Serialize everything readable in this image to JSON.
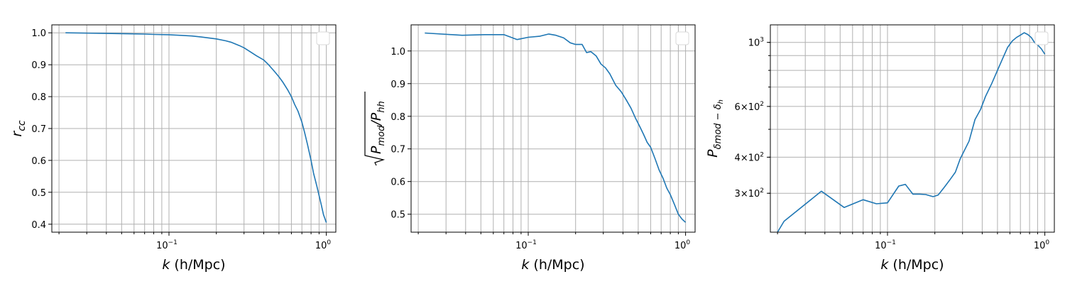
{
  "colors": {
    "line": "#1f77b4",
    "grid": "#b0b0b0"
  },
  "chart_data": [
    {
      "type": "line",
      "xscale": "log",
      "yscale": "linear",
      "xlim": [
        0.018,
        1.15
      ],
      "ylim": [
        0.375,
        1.025
      ],
      "grid": true,
      "legend": "top-right (empty)",
      "xlabel": {
        "main": "k",
        "rest": " (h/Mpc)"
      },
      "ylabel": {
        "base": "r",
        "sub": "cc"
      },
      "xtick_labels": [
        {
          "value": 0.1,
          "base": "10",
          "exp": "−1"
        },
        {
          "value": 1,
          "base": "10",
          "exp": "0"
        }
      ],
      "yticks": [
        {
          "value": 0.4,
          "label": "0.4"
        },
        {
          "value": 0.5,
          "label": "0.5"
        },
        {
          "value": 0.6,
          "label": "0.6"
        },
        {
          "value": 0.7,
          "label": "0.7"
        },
        {
          "value": 0.8,
          "label": "0.8"
        },
        {
          "value": 0.9,
          "label": "0.9"
        },
        {
          "value": 1.0,
          "label": "1.0"
        }
      ],
      "series": [
        {
          "x": [
            0.022,
            0.04,
            0.055,
            0.07,
            0.08,
            0.1,
            0.12,
            0.14,
            0.16,
            0.2,
            0.23,
            0.25,
            0.28,
            0.3,
            0.33,
            0.36,
            0.4,
            0.43,
            0.47,
            0.5,
            0.53,
            0.57,
            0.6,
            0.63,
            0.66,
            0.7,
            0.73,
            0.76,
            0.8,
            0.83,
            0.87,
            0.9,
            0.93,
            0.96,
            1.0
          ],
          "y": [
            1.0,
            0.998,
            0.997,
            0.996,
            0.995,
            0.994,
            0.992,
            0.99,
            0.987,
            0.981,
            0.975,
            0.97,
            0.96,
            0.953,
            0.94,
            0.928,
            0.915,
            0.9,
            0.878,
            0.862,
            0.845,
            0.82,
            0.8,
            0.775,
            0.755,
            0.72,
            0.685,
            0.65,
            0.6,
            0.56,
            0.52,
            0.49,
            0.46,
            0.43,
            0.405
          ]
        }
      ]
    },
    {
      "type": "line",
      "xscale": "log",
      "yscale": "linear",
      "xlim": [
        0.018,
        1.15
      ],
      "ylim": [
        0.445,
        1.08
      ],
      "grid": true,
      "legend": "top-right (empty)",
      "xlabel": {
        "main": "k",
        "rest": " (h/Mpc)"
      },
      "ylabel": {
        "p1": "P",
        "s1": "mod",
        "p2": "/P",
        "s2": "hh"
      },
      "xtick_labels": [
        {
          "value": 0.1,
          "base": "10",
          "exp": "−1"
        },
        {
          "value": 1,
          "base": "10",
          "exp": "0"
        }
      ],
      "yticks": [
        {
          "value": 0.5,
          "label": "0.5"
        },
        {
          "value": 0.6,
          "label": "0.6"
        },
        {
          "value": 0.7,
          "label": "0.7"
        },
        {
          "value": 0.8,
          "label": "0.8"
        },
        {
          "value": 0.9,
          "label": "0.9"
        },
        {
          "value": 1.0,
          "label": "1.0"
        }
      ],
      "series": [
        {
          "x": [
            0.022,
            0.038,
            0.053,
            0.07,
            0.085,
            0.1,
            0.118,
            0.135,
            0.15,
            0.168,
            0.185,
            0.2,
            0.22,
            0.235,
            0.25,
            0.27,
            0.29,
            0.31,
            0.33,
            0.36,
            0.39,
            0.42,
            0.45,
            0.48,
            0.51,
            0.54,
            0.57,
            0.6,
            0.64,
            0.68,
            0.72,
            0.76,
            0.8,
            0.85,
            0.9,
            0.95,
            1.0
          ],
          "y": [
            1.055,
            1.048,
            1.05,
            1.05,
            1.035,
            1.042,
            1.045,
            1.052,
            1.048,
            1.04,
            1.025,
            1.02,
            1.02,
            0.995,
            0.998,
            0.985,
            0.96,
            0.948,
            0.93,
            0.895,
            0.875,
            0.85,
            0.825,
            0.795,
            0.77,
            0.745,
            0.72,
            0.705,
            0.67,
            0.635,
            0.61,
            0.58,
            0.56,
            0.53,
            0.5,
            0.485,
            0.475
          ]
        }
      ]
    },
    {
      "type": "line",
      "xscale": "log",
      "yscale": "log",
      "xlim": [
        0.018,
        1.15
      ],
      "ylim": [
        220,
        1150
      ],
      "grid": true,
      "legend": "top-right (empty)",
      "xlabel": {
        "main": "k",
        "rest": " (h/Mpc)"
      },
      "ylabel": {
        "p": "P",
        "s1": "δmod − δ",
        "s2": "h"
      },
      "xtick_labels": [
        {
          "value": 0.1,
          "base": "10",
          "exp": "−1"
        },
        {
          "value": 1,
          "base": "10",
          "exp": "0"
        }
      ],
      "ytick_labels": [
        {
          "value": 300,
          "mant": "3×10",
          "exp": "2"
        },
        {
          "value": 400,
          "mant": "4×10",
          "exp": "2"
        },
        {
          "value": 600,
          "mant": "6×10",
          "exp": "2"
        },
        {
          "value": 1000,
          "mant": "10",
          "exp": "3"
        }
      ],
      "ygrid_values": [
        300,
        400,
        500,
        600,
        700,
        800,
        900,
        1000
      ],
      "series": [
        {
          "x": [
            0.02,
            0.022,
            0.038,
            0.053,
            0.07,
            0.085,
            0.1,
            0.118,
            0.13,
            0.145,
            0.16,
            0.175,
            0.195,
            0.21,
            0.23,
            0.25,
            0.27,
            0.29,
            0.31,
            0.33,
            0.36,
            0.39,
            0.42,
            0.46,
            0.5,
            0.54,
            0.58,
            0.62,
            0.66,
            0.7,
            0.74,
            0.78,
            0.82,
            0.86,
            0.9,
            0.95,
            1.0
          ],
          "y": [
            220,
            240,
            305,
            268,
            285,
            276,
            278,
            318,
            322,
            298,
            298,
            297,
            292,
            296,
            315,
            335,
            355,
            395,
            425,
            455,
            540,
            585,
            650,
            720,
            800,
            880,
            960,
            1010,
            1040,
            1060,
            1080,
            1065,
            1040,
            1000,
            980,
            950,
            910
          ]
        }
      ]
    }
  ]
}
